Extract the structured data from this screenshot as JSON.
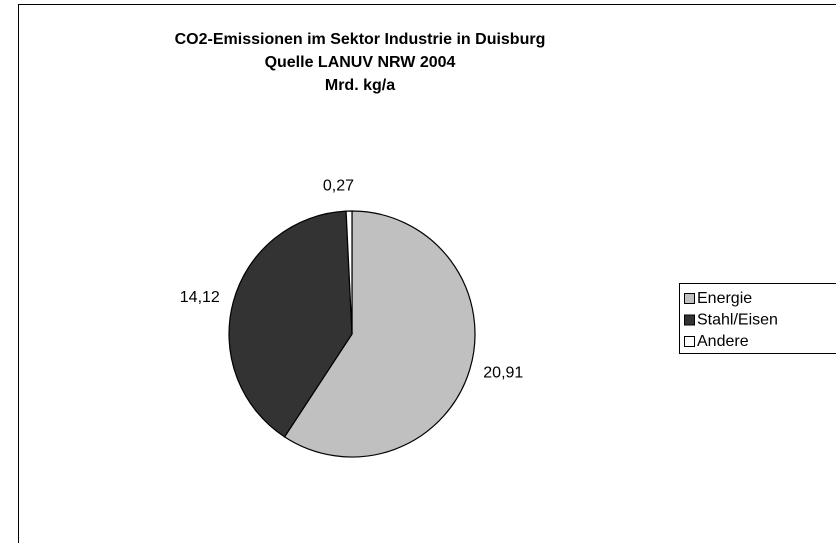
{
  "chart_data": {
    "type": "pie",
    "title": [
      "CO2-Emissionen im Sektor Industrie in Duisburg",
      "Quelle LANUV NRW 2004",
      "Mrd. kg/a"
    ],
    "categories": [
      "Energie",
      "Stahl/Eisen",
      "Andere"
    ],
    "values": [
      20.91,
      14.12,
      0.27
    ],
    "value_labels": [
      "20,91",
      "14,12",
      "0,27"
    ],
    "colors": [
      "#c0c0c0",
      "#333333",
      "#ffffff"
    ],
    "legend": "right"
  }
}
